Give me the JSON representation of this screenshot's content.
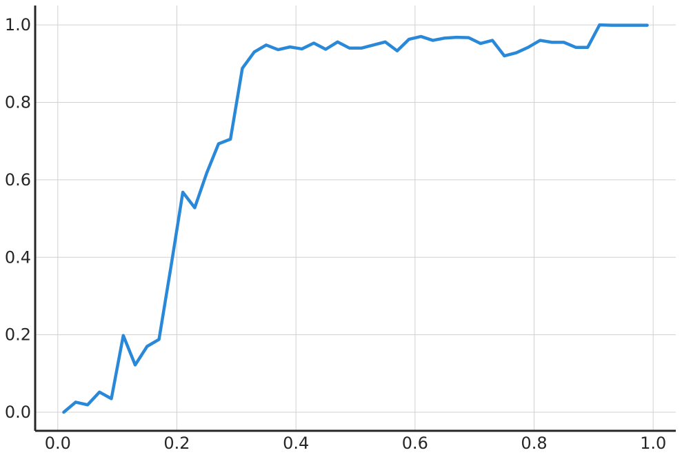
{
  "chart_data": {
    "type": "line",
    "title": "",
    "xlabel": "",
    "ylabel": "",
    "xlim": [
      -0.038,
      1.038
    ],
    "ylim": [
      -0.048,
      1.05
    ],
    "xticks": [
      0.0,
      0.2,
      0.4,
      0.6,
      0.8,
      1.0
    ],
    "xtick_labels": [
      "0.0",
      "0.2",
      "0.4",
      "0.6",
      "0.8",
      "1.0"
    ],
    "yticks": [
      0.0,
      0.2,
      0.4,
      0.6,
      0.8,
      1.0
    ],
    "ytick_labels": [
      "0.0",
      "0.2",
      "0.4",
      "0.6",
      "0.8",
      "1.0"
    ],
    "grid": true,
    "legend": "none",
    "series": [
      {
        "color": "#2a88d8",
        "x": [
          0.01,
          0.03,
          0.05,
          0.07,
          0.09,
          0.11,
          0.13,
          0.15,
          0.17,
          0.19,
          0.21,
          0.23,
          0.25,
          0.27,
          0.29,
          0.31,
          0.33,
          0.35,
          0.37,
          0.39,
          0.41,
          0.43,
          0.45,
          0.47,
          0.49,
          0.51,
          0.53,
          0.55,
          0.57,
          0.59,
          0.61,
          0.63,
          0.65,
          0.67,
          0.69,
          0.71,
          0.73,
          0.75,
          0.77,
          0.79,
          0.81,
          0.83,
          0.85,
          0.87,
          0.89,
          0.91,
          0.93,
          0.95,
          0.97,
          0.99
        ],
        "y": [
          0.0,
          0.026,
          0.019,
          0.052,
          0.035,
          0.198,
          0.122,
          0.17,
          0.188,
          0.375,
          0.568,
          0.528,
          0.617,
          0.693,
          0.705,
          0.888,
          0.93,
          0.948,
          0.936,
          0.943,
          0.938,
          0.953,
          0.937,
          0.956,
          0.94,
          0.94,
          0.948,
          0.956,
          0.933,
          0.963,
          0.97,
          0.96,
          0.966,
          0.968,
          0.967,
          0.952,
          0.96,
          0.92,
          0.928,
          0.942,
          0.96,
          0.955,
          0.955,
          0.942,
          0.942,
          1.0,
          0.999,
          0.999,
          0.999,
          0.999
        ]
      }
    ]
  }
}
